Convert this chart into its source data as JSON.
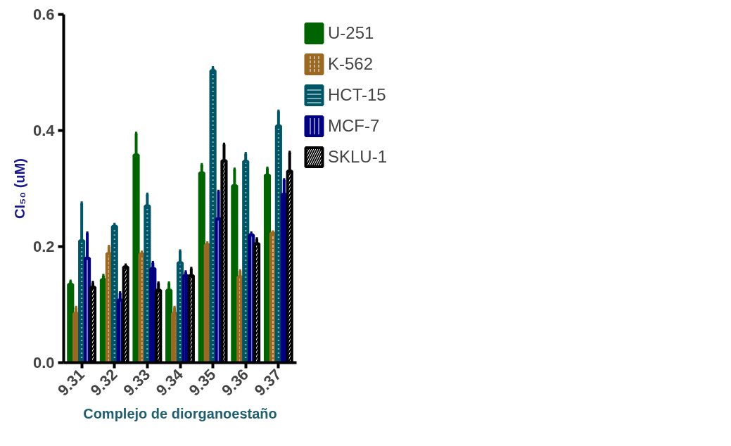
{
  "chart_data": {
    "type": "bar",
    "xlabel": "Complejo de diorganoestaño",
    "ylabel": "CI₅₀ (uM)",
    "categories": [
      "9.31",
      "9.32",
      "9.33",
      "9.34",
      "9.35",
      "9.36",
      "9.37"
    ],
    "ylim": [
      0,
      0.6
    ],
    "yticks": [
      {
        "value": 0,
        "label": "0.0"
      },
      {
        "value": 0.2,
        "label": "0.2"
      },
      {
        "value": 0.4,
        "label": "0.4"
      },
      {
        "value": 0.6,
        "label": "0.6"
      }
    ],
    "grid": false,
    "legend": "top right",
    "series": [
      {
        "name": "U-251",
        "color": "#006400",
        "values": [
          0.135,
          0.143,
          0.358,
          0.125,
          0.327,
          0.305,
          0.323
        ],
        "errors": [
          [
            0.135,
            0.14
          ],
          [
            0.143,
            0.15
          ],
          [
            0.358,
            0.395
          ],
          [
            0.125,
            0.137
          ],
          [
            0.327,
            0.341
          ],
          [
            0.305,
            0.333
          ],
          [
            0.323,
            0.335
          ]
        ]
      },
      {
        "name": "K-562",
        "color": "#9a6a25",
        "values": [
          0.085,
          0.188,
          0.187,
          0.085,
          0.203,
          0.148,
          0.223
        ],
        "errors": [
          [
            0.085,
            0.095
          ],
          [
            0.188,
            0.2
          ],
          [
            0.187,
            0.19
          ],
          [
            0.085,
            0.095
          ],
          [
            0.203,
            0.206
          ],
          [
            0.148,
            0.158
          ],
          [
            0.223,
            0.225
          ]
        ]
      },
      {
        "name": "HCT-15",
        "color": "#005566",
        "values": [
          0.21,
          0.235,
          0.27,
          0.172,
          0.503,
          0.347,
          0.408
        ],
        "errors": [
          [
            0.21,
            0.275
          ],
          [
            0.235,
            0.238
          ],
          [
            0.27,
            0.29
          ],
          [
            0.172,
            0.192
          ],
          [
            0.503,
            0.508
          ],
          [
            0.347,
            0.36
          ],
          [
            0.408,
            0.433
          ]
        ]
      },
      {
        "name": "MCF-7",
        "color": "#000080",
        "values": [
          0.18,
          0.108,
          0.162,
          0.15,
          0.248,
          0.22,
          0.29
        ],
        "errors": [
          [
            0.18,
            0.223
          ],
          [
            0.108,
            0.12
          ],
          [
            0.162,
            0.172
          ],
          [
            0.15,
            0.156
          ],
          [
            0.248,
            0.295
          ],
          [
            0.22,
            0.223
          ],
          [
            0.29,
            0.315
          ]
        ]
      },
      {
        "name": "SKLU-1",
        "color": "#000000",
        "values": [
          0.13,
          0.165,
          0.125,
          0.15,
          0.348,
          0.205,
          0.33
        ],
        "errors": [
          [
            0.13,
            0.138
          ],
          [
            0.165,
            0.168
          ],
          [
            0.125,
            0.137
          ],
          [
            0.15,
            0.162
          ],
          [
            0.348,
            0.376
          ],
          [
            0.205,
            0.213
          ],
          [
            0.33,
            0.362
          ]
        ]
      }
    ]
  }
}
